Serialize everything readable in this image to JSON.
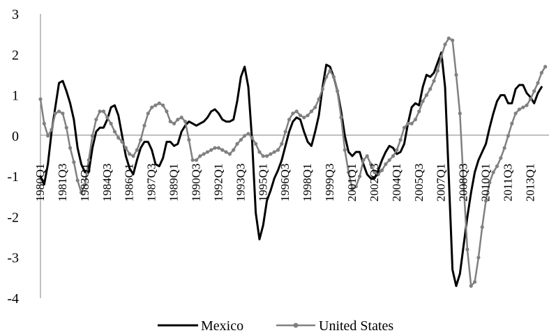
{
  "chart_data": {
    "type": "line",
    "title": "",
    "xlabel": "",
    "ylabel": "",
    "ylim": [
      -4,
      3
    ],
    "yticks": [
      -4,
      -3,
      -2,
      -1,
      0,
      1,
      2,
      3
    ],
    "grid": false,
    "legend_position": "bottom",
    "x_start": "1980Q1",
    "x_end": "2014Q2",
    "x_tick_labels": [
      "1980Q1",
      "1981Q3",
      "1983Q1",
      "1984Q3",
      "1986Q1",
      "1987Q3",
      "1989Q1",
      "1990Q3",
      "1992Q1",
      "1993Q3",
      "1995Q1",
      "1996Q3",
      "1998Q1",
      "1999Q3",
      "2001Q1",
      "2002Q3",
      "2004Q1",
      "2005Q3",
      "2007Q1",
      "2008Q3",
      "2010Q1",
      "2011Q3",
      "2013Q1"
    ],
    "series": [
      {
        "name": "Mexico",
        "color": "#000000",
        "marker": "none",
        "points": [
          [
            "1980Q1",
            -1.0
          ],
          [
            "1980Q2",
            -1.2
          ],
          [
            "1980Q3",
            -0.7
          ],
          [
            "1980Q4",
            0.1
          ],
          [
            "1981Q1",
            0.7
          ],
          [
            "1981Q2",
            1.3
          ],
          [
            "1981Q3",
            1.35
          ],
          [
            "1981Q4",
            1.1
          ],
          [
            "1982Q1",
            0.8
          ],
          [
            "1982Q2",
            0.4
          ],
          [
            "1982Q3",
            -0.3
          ],
          [
            "1982Q4",
            -0.7
          ],
          [
            "1983Q1",
            -0.9
          ],
          [
            "1983Q2",
            -0.9
          ],
          [
            "1983Q3",
            -0.3
          ],
          [
            "1983Q4",
            0.1
          ],
          [
            "1984Q1",
            0.2
          ],
          [
            "1984Q2",
            0.2
          ],
          [
            "1984Q3",
            0.4
          ],
          [
            "1984Q4",
            0.7
          ],
          [
            "1985Q1",
            0.75
          ],
          [
            "1985Q2",
            0.5
          ],
          [
            "1985Q3",
            0.0
          ],
          [
            "1985Q4",
            -0.5
          ],
          [
            "1986Q1",
            -0.8
          ],
          [
            "1986Q2",
            -0.95
          ],
          [
            "1986Q3",
            -0.6
          ],
          [
            "1986Q4",
            -0.3
          ],
          [
            "1987Q1",
            -0.15
          ],
          [
            "1987Q2",
            -0.15
          ],
          [
            "1987Q3",
            -0.35
          ],
          [
            "1987Q4",
            -0.7
          ],
          [
            "1988Q1",
            -0.75
          ],
          [
            "1988Q2",
            -0.55
          ],
          [
            "1988Q3",
            -0.15
          ],
          [
            "1988Q4",
            -0.15
          ],
          [
            "1989Q1",
            -0.25
          ],
          [
            "1989Q2",
            -0.2
          ],
          [
            "1989Q3",
            0.1
          ],
          [
            "1989Q4",
            0.25
          ],
          [
            "1990Q1",
            0.35
          ],
          [
            "1990Q2",
            0.3
          ],
          [
            "1990Q3",
            0.25
          ],
          [
            "1990Q4",
            0.3
          ],
          [
            "1991Q1",
            0.35
          ],
          [
            "1991Q2",
            0.45
          ],
          [
            "1991Q3",
            0.6
          ],
          [
            "1991Q4",
            0.65
          ],
          [
            "1992Q1",
            0.55
          ],
          [
            "1992Q2",
            0.4
          ],
          [
            "1992Q3",
            0.35
          ],
          [
            "1992Q4",
            0.35
          ],
          [
            "1993Q1",
            0.4
          ],
          [
            "1993Q2",
            0.85
          ],
          [
            "1993Q3",
            1.45
          ],
          [
            "1993Q4",
            1.7
          ],
          [
            "1994Q1",
            1.2
          ],
          [
            "1994Q2",
            -0.1
          ],
          [
            "1994Q3",
            -1.9
          ],
          [
            "1994Q4",
            -2.55
          ],
          [
            "1995Q1",
            -2.2
          ],
          [
            "1995Q2",
            -1.6
          ],
          [
            "1995Q3",
            -1.35
          ],
          [
            "1995Q4",
            -1.05
          ],
          [
            "1996Q1",
            -0.85
          ],
          [
            "1996Q2",
            -0.6
          ],
          [
            "1996Q3",
            -0.25
          ],
          [
            "1996Q4",
            0.1
          ],
          [
            "1997Q1",
            0.35
          ],
          [
            "1997Q2",
            0.45
          ],
          [
            "1997Q3",
            0.4
          ],
          [
            "1997Q4",
            0.1
          ],
          [
            "1998Q1",
            -0.15
          ],
          [
            "1998Q2",
            -0.25
          ],
          [
            "1998Q3",
            0.1
          ],
          [
            "1998Q4",
            0.5
          ],
          [
            "1999Q1",
            1.2
          ],
          [
            "1999Q2",
            1.75
          ],
          [
            "1999Q3",
            1.7
          ],
          [
            "1999Q4",
            1.45
          ],
          [
            "2000Q1",
            1.1
          ],
          [
            "2000Q2",
            0.6
          ],
          [
            "2000Q3",
            0.0
          ],
          [
            "2000Q4",
            -0.4
          ],
          [
            "2001Q1",
            -0.5
          ],
          [
            "2001Q2",
            -0.4
          ],
          [
            "2001Q3",
            -0.4
          ],
          [
            "2001Q4",
            -0.7
          ],
          [
            "2002Q1",
            -0.95
          ],
          [
            "2002Q2",
            -1.05
          ],
          [
            "2002Q3",
            -1.05
          ],
          [
            "2002Q4",
            -0.85
          ],
          [
            "2003Q1",
            -0.6
          ],
          [
            "2003Q2",
            -0.4
          ],
          [
            "2003Q3",
            -0.25
          ],
          [
            "2003Q4",
            -0.3
          ],
          [
            "2004Q1",
            -0.45
          ],
          [
            "2004Q2",
            -0.4
          ],
          [
            "2004Q3",
            -0.2
          ],
          [
            "2004Q4",
            0.3
          ],
          [
            "2005Q1",
            0.7
          ],
          [
            "2005Q2",
            0.8
          ],
          [
            "2005Q3",
            0.75
          ],
          [
            "2005Q4",
            1.2
          ],
          [
            "2006Q1",
            1.5
          ],
          [
            "2006Q2",
            1.45
          ],
          [
            "2006Q3",
            1.55
          ],
          [
            "2006Q4",
            1.8
          ],
          [
            "2007Q1",
            2.05
          ],
          [
            "2007Q2",
            1.2
          ],
          [
            "2007Q3",
            -1.0
          ],
          [
            "2007Q4",
            -3.3
          ],
          [
            "2008Q1",
            -3.7
          ],
          [
            "2008Q2",
            -3.4
          ],
          [
            "2008Q3",
            -2.7
          ],
          [
            "2008Q4",
            -2.0
          ],
          [
            "2009Q1",
            -1.4
          ],
          [
            "2009Q2",
            -0.9
          ],
          [
            "2009Q3",
            -0.6
          ],
          [
            "2009Q4",
            -0.4
          ],
          [
            "2010Q1",
            -0.2
          ],
          [
            "2010Q2",
            0.2
          ],
          [
            "2010Q3",
            0.55
          ],
          [
            "2010Q4",
            0.85
          ],
          [
            "2011Q1",
            1.0
          ],
          [
            "2011Q2",
            1.0
          ],
          [
            "2011Q3",
            0.8
          ],
          [
            "2011Q4",
            0.8
          ],
          [
            "2012Q1",
            1.15
          ],
          [
            "2012Q2",
            1.25
          ],
          [
            "2012Q3",
            1.25
          ],
          [
            "2012Q4",
            1.05
          ],
          [
            "2013Q1",
            0.95
          ],
          [
            "2013Q2",
            0.8
          ],
          [
            "2013Q3",
            1.05
          ],
          [
            "2013Q4",
            1.2
          ]
        ]
      },
      {
        "name": "United States",
        "color": "#808080",
        "marker": "circle",
        "points": [
          [
            "1980Q1",
            0.9
          ],
          [
            "1980Q2",
            0.3
          ],
          [
            "1980Q3",
            0.0
          ],
          [
            "1980Q4",
            0.15
          ],
          [
            "1981Q1",
            0.55
          ],
          [
            "1981Q2",
            0.6
          ],
          [
            "1981Q3",
            0.55
          ],
          [
            "1981Q4",
            0.2
          ],
          [
            "1982Q1",
            -0.3
          ],
          [
            "1982Q2",
            -0.65
          ],
          [
            "1982Q3",
            -1.1
          ],
          [
            "1982Q4",
            -1.4
          ],
          [
            "1983Q1",
            -1.2
          ],
          [
            "1983Q2",
            -0.6
          ],
          [
            "1983Q3",
            0.0
          ],
          [
            "1983Q4",
            0.4
          ],
          [
            "1984Q1",
            0.6
          ],
          [
            "1984Q2",
            0.6
          ],
          [
            "1984Q3",
            0.45
          ],
          [
            "1984Q4",
            0.3
          ],
          [
            "1985Q1",
            0.1
          ],
          [
            "1985Q2",
            -0.05
          ],
          [
            "1985Q3",
            -0.15
          ],
          [
            "1985Q4",
            -0.3
          ],
          [
            "1986Q1",
            -0.45
          ],
          [
            "1986Q2",
            -0.5
          ],
          [
            "1986Q3",
            -0.35
          ],
          [
            "1986Q4",
            -0.1
          ],
          [
            "1987Q1",
            0.25
          ],
          [
            "1987Q2",
            0.55
          ],
          [
            "1987Q3",
            0.7
          ],
          [
            "1987Q4",
            0.75
          ],
          [
            "1988Q1",
            0.8
          ],
          [
            "1988Q2",
            0.75
          ],
          [
            "1988Q3",
            0.6
          ],
          [
            "1988Q4",
            0.35
          ],
          [
            "1989Q1",
            0.3
          ],
          [
            "1989Q2",
            0.4
          ],
          [
            "1989Q3",
            0.45
          ],
          [
            "1989Q4",
            0.35
          ],
          [
            "1990Q1",
            -0.1
          ],
          [
            "1990Q2",
            -0.6
          ],
          [
            "1990Q3",
            -0.6
          ],
          [
            "1990Q4",
            -0.5
          ],
          [
            "1991Q1",
            -0.45
          ],
          [
            "1991Q2",
            -0.4
          ],
          [
            "1991Q3",
            -0.35
          ],
          [
            "1991Q4",
            -0.3
          ],
          [
            "1992Q1",
            -0.3
          ],
          [
            "1992Q2",
            -0.35
          ],
          [
            "1992Q3",
            -0.4
          ],
          [
            "1992Q4",
            -0.45
          ],
          [
            "1993Q1",
            -0.35
          ],
          [
            "1993Q2",
            -0.2
          ],
          [
            "1993Q3",
            -0.1
          ],
          [
            "1993Q4",
            0.0
          ],
          [
            "1994Q1",
            0.05
          ],
          [
            "1994Q2",
            -0.05
          ],
          [
            "1994Q3",
            -0.2
          ],
          [
            "1994Q4",
            -0.4
          ],
          [
            "1995Q1",
            -0.5
          ],
          [
            "1995Q2",
            -0.5
          ],
          [
            "1995Q3",
            -0.45
          ],
          [
            "1995Q4",
            -0.4
          ],
          [
            "1996Q1",
            -0.35
          ],
          [
            "1996Q2",
            -0.2
          ],
          [
            "1996Q3",
            0.1
          ],
          [
            "1996Q4",
            0.4
          ],
          [
            "1997Q1",
            0.55
          ],
          [
            "1997Q2",
            0.6
          ],
          [
            "1997Q3",
            0.5
          ],
          [
            "1997Q4",
            0.45
          ],
          [
            "1998Q1",
            0.5
          ],
          [
            "1998Q2",
            0.6
          ],
          [
            "1998Q3",
            0.7
          ],
          [
            "1998Q4",
            0.9
          ],
          [
            "1999Q1",
            1.15
          ],
          [
            "1999Q2",
            1.45
          ],
          [
            "1999Q3",
            1.6
          ],
          [
            "1999Q4",
            1.45
          ],
          [
            "2000Q1",
            1.1
          ],
          [
            "2000Q2",
            0.45
          ],
          [
            "2000Q3",
            -0.35
          ],
          [
            "2000Q4",
            -0.9
          ],
          [
            "2001Q1",
            -1.3
          ],
          [
            "2001Q2",
            -1.25
          ],
          [
            "2001Q3",
            -1.0
          ],
          [
            "2001Q4",
            -0.6
          ],
          [
            "2002Q1",
            -0.5
          ],
          [
            "2002Q2",
            -0.7
          ],
          [
            "2002Q3",
            -0.9
          ],
          [
            "2002Q4",
            -0.95
          ],
          [
            "2003Q1",
            -0.85
          ],
          [
            "2003Q2",
            -0.7
          ],
          [
            "2003Q3",
            -0.6
          ],
          [
            "2003Q4",
            -0.5
          ],
          [
            "2004Q1",
            -0.35
          ],
          [
            "2004Q2",
            -0.1
          ],
          [
            "2004Q3",
            0.2
          ],
          [
            "2004Q4",
            0.3
          ],
          [
            "2005Q1",
            0.3
          ],
          [
            "2005Q2",
            0.4
          ],
          [
            "2005Q3",
            0.6
          ],
          [
            "2005Q4",
            0.85
          ],
          [
            "2006Q1",
            1.0
          ],
          [
            "2006Q2",
            1.15
          ],
          [
            "2006Q3",
            1.35
          ],
          [
            "2006Q4",
            1.6
          ],
          [
            "2007Q1",
            1.95
          ],
          [
            "2007Q2",
            2.25
          ],
          [
            "2007Q3",
            2.4
          ],
          [
            "2007Q4",
            2.35
          ],
          [
            "2008Q1",
            1.5
          ],
          [
            "2008Q2",
            0.55
          ],
          [
            "2008Q3",
            -1.2
          ],
          [
            "2008Q4",
            -2.8
          ],
          [
            "2009Q1",
            -3.7
          ],
          [
            "2009Q2",
            -3.6
          ],
          [
            "2009Q3",
            -3.0
          ],
          [
            "2009Q4",
            -2.25
          ],
          [
            "2010Q1",
            -1.6
          ],
          [
            "2010Q2",
            -1.15
          ],
          [
            "2010Q3",
            -0.9
          ],
          [
            "2010Q4",
            -0.75
          ],
          [
            "2011Q1",
            -0.55
          ],
          [
            "2011Q2",
            -0.3
          ],
          [
            "2011Q3",
            0.0
          ],
          [
            "2011Q4",
            0.3
          ],
          [
            "2012Q1",
            0.55
          ],
          [
            "2012Q2",
            0.65
          ],
          [
            "2012Q3",
            0.7
          ],
          [
            "2012Q4",
            0.75
          ],
          [
            "2013Q1",
            0.9
          ],
          [
            "2013Q2",
            1.1
          ],
          [
            "2013Q3",
            1.3
          ],
          [
            "2013Q4",
            1.55
          ],
          [
            "2014Q1",
            1.7
          ]
        ]
      }
    ]
  }
}
